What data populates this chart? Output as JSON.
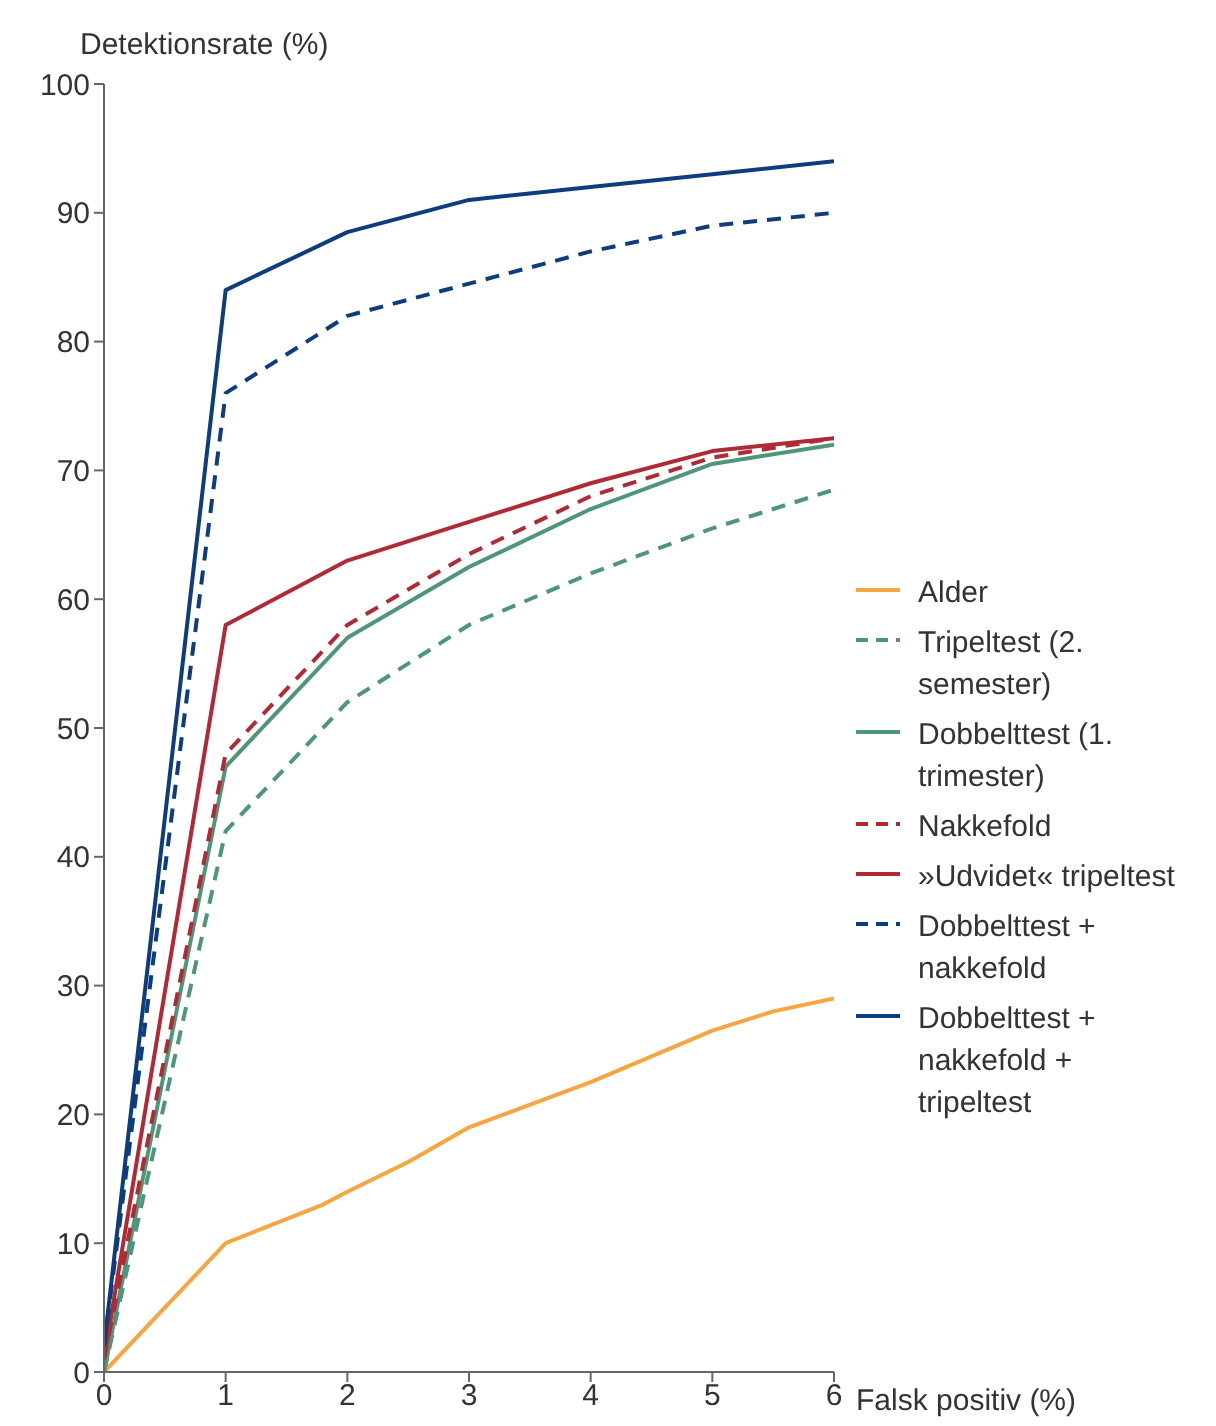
{
  "chart_data": {
    "type": "line",
    "xlabel": "Falsk positiv (%)",
    "ylabel": "Detektionsrate (%)",
    "xlim": [
      0,
      6
    ],
    "xticks": [
      0,
      1,
      2,
      3,
      4,
      5,
      6
    ],
    "ylim": [
      0,
      100
    ],
    "yticks": [
      0,
      10,
      20,
      30,
      40,
      50,
      60,
      70,
      80,
      90,
      100
    ],
    "grid": false,
    "legend": "right",
    "marker": "none",
    "series": [
      {
        "name": "Alder",
        "color": "#f7a541",
        "line_style": "solid",
        "x": [
          0,
          1,
          1.8,
          2,
          2.5,
          3,
          4,
          5,
          5.5,
          6
        ],
        "values": [
          0,
          10,
          13,
          14,
          16.3,
          19,
          22.5,
          26.5,
          28,
          29
        ]
      },
      {
        "name": "Tripeltest (2. semester)",
        "color": "#4f9679",
        "line_style": "dashed",
        "x": [
          0,
          1,
          2,
          3,
          4,
          5,
          6
        ],
        "values": [
          0,
          42,
          52,
          58,
          62,
          65.5,
          68.5
        ]
      },
      {
        "name": "Dobbelttest (1. trimester)",
        "color": "#4f9679",
        "line_style": "solid",
        "x": [
          0,
          1,
          2,
          3,
          4,
          5,
          6
        ],
        "values": [
          0,
          47,
          57,
          62.5,
          67,
          70.5,
          72
        ]
      },
      {
        "name": "Nakkefold",
        "color": "#b02a35",
        "line_style": "dashed",
        "x": [
          0,
          1,
          2,
          3,
          4,
          5,
          6
        ],
        "values": [
          1,
          48,
          58,
          63.5,
          68,
          71,
          72.5
        ]
      },
      {
        "name": "»Udvidet« tripeltest",
        "color": "#b02a35",
        "line_style": "solid",
        "x": [
          0,
          1,
          2,
          3,
          4,
          5,
          6
        ],
        "values": [
          1,
          58,
          63,
          66,
          69,
          71.5,
          72.5
        ]
      },
      {
        "name": "Dobbelttest + nakkefold",
        "color": "#0d3d7c",
        "line_style": "dashed",
        "x": [
          0,
          1,
          2,
          3,
          4,
          5,
          6
        ],
        "values": [
          2,
          76,
          82,
          84.5,
          87,
          89,
          90
        ]
      },
      {
        "name": "Dobbelttest + nakkefold + tripeltest",
        "color": "#0d3d7c",
        "line_style": "solid",
        "x": [
          0,
          1,
          2,
          3,
          4,
          5,
          6
        ],
        "values": [
          2,
          84,
          88.5,
          91,
          92,
          93,
          94
        ]
      }
    ]
  }
}
